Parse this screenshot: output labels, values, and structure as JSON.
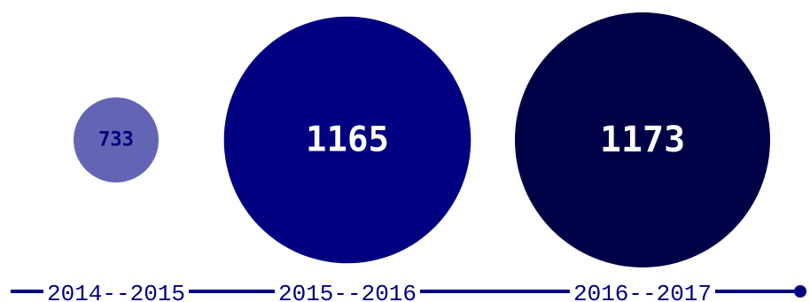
{
  "chart_data": {
    "type": "bubble",
    "title": "",
    "categories": [
      "2014--2015",
      "2015--2016",
      "2016--2017"
    ],
    "values": [
      733,
      1165,
      1173
    ],
    "legend": "none",
    "grid": false,
    "colors": {
      "bubbles": [
        "#6464b4",
        "#000080",
        "#000046"
      ],
      "labels": [
        "#000080",
        "#ffffff",
        "#ffffff"
      ],
      "axis": "#000080",
      "axis_label": "#000080"
    }
  }
}
